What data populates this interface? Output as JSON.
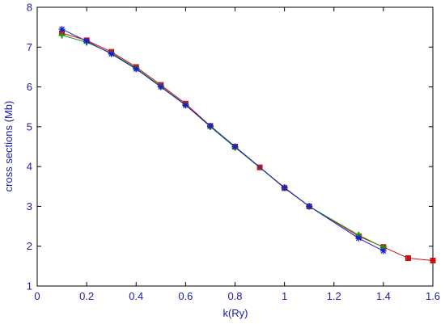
{
  "chart_data": {
    "type": "line",
    "title": "",
    "xlabel": "k(Ry)",
    "ylabel": "cross sections (Mb)",
    "xlim": [
      0,
      1.6
    ],
    "ylim": [
      1,
      8
    ],
    "xticks": [
      "0",
      "0.2",
      "0.4",
      "0.6",
      "0.8",
      "1",
      "1.2",
      "1.4",
      "1.6"
    ],
    "yticks": [
      "1",
      "2",
      "3",
      "4",
      "5",
      "6",
      "7",
      "8"
    ],
    "grid": false,
    "legend": "none",
    "series": [
      {
        "color": "#d01010",
        "marker": "square",
        "x": [
          0.1,
          0.2,
          0.3,
          0.4,
          0.5,
          0.6,
          0.7,
          0.8,
          0.9,
          1.0,
          1.1,
          1.3,
          1.4,
          1.5,
          1.6
        ],
        "y": [
          7.35,
          7.17,
          6.88,
          6.5,
          6.05,
          5.58,
          5.02,
          4.5,
          3.98,
          3.46,
          3.0,
          2.25,
          1.98,
          1.7,
          1.64
        ]
      },
      {
        "color": "#1a9a1a",
        "marker": "plus",
        "x": [
          0.1,
          0.2,
          0.3,
          0.4,
          0.5,
          0.6,
          0.7,
          0.8,
          1.0,
          1.1,
          1.3,
          1.4
        ],
        "y": [
          7.3,
          7.12,
          6.85,
          6.47,
          6.02,
          5.55,
          5.0,
          4.48,
          3.47,
          3.0,
          2.28,
          1.97
        ]
      },
      {
        "color": "#1a1ad0",
        "marker": "star",
        "x": [
          0.1,
          0.2,
          0.3,
          0.4,
          0.5,
          0.6,
          0.7,
          0.8,
          1.0,
          1.1,
          1.3,
          1.4
        ],
        "y": [
          7.45,
          7.15,
          6.83,
          6.45,
          6.0,
          5.54,
          5.02,
          4.5,
          3.47,
          3.0,
          2.2,
          1.88
        ]
      }
    ]
  }
}
